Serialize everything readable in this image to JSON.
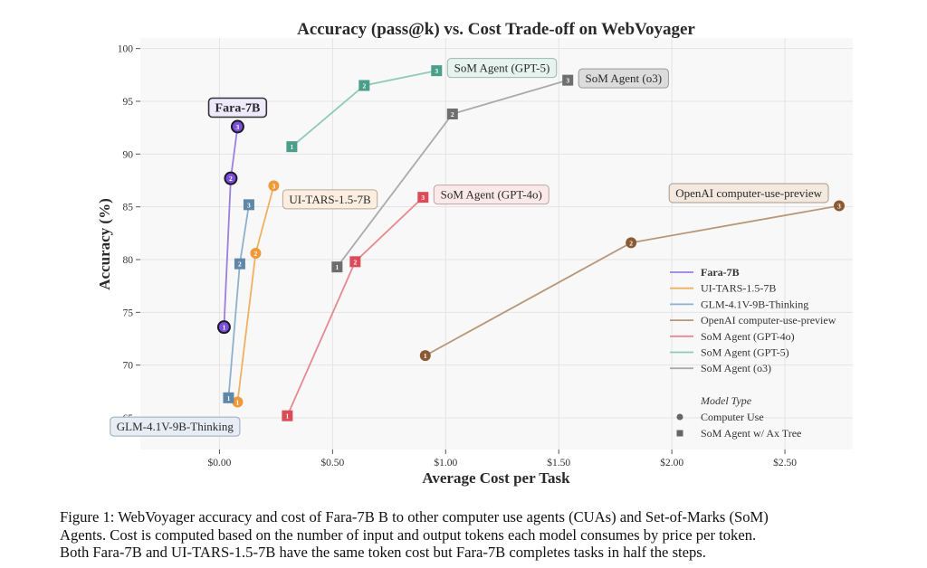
{
  "chart_data": {
    "type": "line",
    "title": "Accuracy (pass@k) vs. Cost Trade-off on WebVoyager",
    "xlabel": "Average Cost per Task",
    "ylabel": "Accuracy (%)",
    "xlim": [
      -0.35,
      2.8
    ],
    "ylim": [
      62,
      101
    ],
    "grid": true,
    "x_ticks": [
      0,
      0.5,
      1.0,
      1.5,
      2.0,
      2.5
    ],
    "x_tick_labels": [
      "$0.00",
      "$0.50",
      "$1.00",
      "$1.50",
      "$2.00",
      "$2.50"
    ],
    "y_ticks": [
      65,
      70,
      75,
      80,
      85,
      90,
      95,
      100
    ],
    "y_tick_labels": [
      "65",
      "70",
      "75",
      "80",
      "85",
      "90",
      "95",
      "100"
    ],
    "legend_position": "lower-right",
    "legend_marker_title": "Model Type",
    "legend_markers": [
      {
        "shape": "circle",
        "label": "Computer Use"
      },
      {
        "shape": "square",
        "label": "SoM Agent w/ Ax Tree"
      }
    ],
    "series": [
      {
        "name": "Fara-7B",
        "color": "#9b7fe0",
        "marker_color": "#7b4fd6",
        "shape": "circle",
        "bold": true,
        "highlight": true,
        "x": [
          0.02,
          0.05,
          0.08
        ],
        "y": [
          73.6,
          87.7,
          92.6
        ],
        "point_labels": [
          "1",
          "2",
          "3"
        ],
        "annotation": "Fara-7B",
        "annotation_bg": "#efeafb",
        "annotation_border": "#333333"
      },
      {
        "name": "UI-TARS-1.5-7B",
        "color": "#f0b060",
        "marker_color": "#ee9a3a",
        "shape": "circle",
        "x": [
          0.08,
          0.16,
          0.24
        ],
        "y": [
          66.5,
          80.6,
          87.0
        ],
        "point_labels": [
          "1",
          "2",
          "3"
        ],
        "annotation": "UI-TARS-1.5-7B",
        "annotation_bg": "#fbeee1",
        "annotation_border": "#b8a892"
      },
      {
        "name": "GLM-4.1V-9B-Thinking",
        "color": "#8fb0cc",
        "marker_color": "#5e87a8",
        "shape": "square",
        "x": [
          0.04,
          0.09,
          0.13
        ],
        "y": [
          66.9,
          79.6,
          85.2
        ],
        "point_labels": [
          "1",
          "2",
          "3"
        ],
        "annotation": "GLM-4.1V-9B-Thinking",
        "annotation_bg": "#e6edf4",
        "annotation_border": "#9aaab8"
      },
      {
        "name": "OpenAI computer-use-preview",
        "color": "#b89878",
        "marker_color": "#8a5a32",
        "shape": "circle",
        "x": [
          0.91,
          1.82,
          2.74
        ],
        "y": [
          70.9,
          81.6,
          85.1
        ],
        "point_labels": [
          "1",
          "2",
          "3"
        ],
        "annotation": "OpenAI computer-use-preview",
        "annotation_bg": "#f4e9de",
        "annotation_border": "#a8998a"
      },
      {
        "name": "SoM Agent (GPT-4o)",
        "color": "#e48a90",
        "marker_color": "#dc4c58",
        "shape": "square",
        "x": [
          0.3,
          0.6,
          0.9
        ],
        "y": [
          65.2,
          79.8,
          85.9
        ],
        "point_labels": [
          "1",
          "2",
          "3"
        ],
        "annotation": "SoM Agent (GPT-4o)",
        "annotation_bg": "#fbe9ea",
        "annotation_border": "#b9a5a6"
      },
      {
        "name": "SoM Agent (GPT-5)",
        "color": "#8fcab8",
        "marker_color": "#4a9e8a",
        "shape": "square",
        "x": [
          0.32,
          0.64,
          0.96
        ],
        "y": [
          90.7,
          96.5,
          97.9
        ],
        "point_labels": [
          "1",
          "2",
          "3"
        ],
        "annotation": "SoM Agent (GPT-5)",
        "annotation_bg": "#e6f3ef",
        "annotation_border": "#9cb6ae"
      },
      {
        "name": "SoM Agent (o3)",
        "color": "#aaaaaa",
        "marker_color": "#6e6e6e",
        "shape": "square",
        "x": [
          0.52,
          1.03,
          1.54
        ],
        "y": [
          79.3,
          93.8,
          97.0
        ],
        "point_labels": [
          "1",
          "2",
          "3"
        ],
        "annotation": "SoM Agent (o3)",
        "annotation_bg": "#dcdcdc",
        "annotation_border": "#999999"
      }
    ]
  },
  "caption": {
    "lines": [
      "Figure 1: WebVoyager accuracy and cost of Fara-7B B to other computer use agents (CUAs) and Set-of-Marks (SoM)",
      "Agents. Cost is computed based on the number of input and output tokens each model consumes by price per token.",
      "Both Fara-7B and UI-TARS-1.5-7B have the same token cost but Fara-7B completes tasks in half the steps."
    ]
  }
}
